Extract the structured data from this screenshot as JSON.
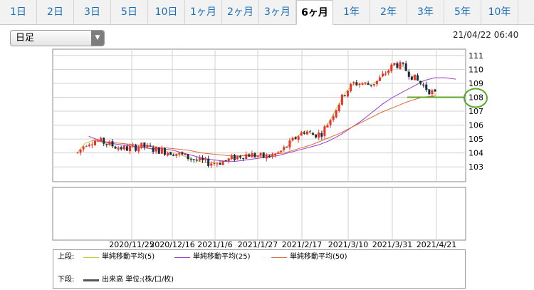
{
  "tabs": [
    {
      "label": "1日",
      "active": false
    },
    {
      "label": "2日",
      "active": false
    },
    {
      "label": "3日",
      "active": false
    },
    {
      "label": "5日",
      "active": false
    },
    {
      "label": "10日",
      "active": false
    },
    {
      "label": "1ヶ月",
      "active": false
    },
    {
      "label": "2ヶ月",
      "active": false
    },
    {
      "label": "3ヶ月",
      "active": false
    },
    {
      "label": "6ヶ月",
      "active": true
    },
    {
      "label": "1年",
      "active": false
    },
    {
      "label": "2年",
      "active": false
    },
    {
      "label": "3年",
      "active": false
    },
    {
      "label": "5年",
      "active": false
    },
    {
      "label": "10年",
      "active": false
    }
  ],
  "period_select": {
    "value": "日足"
  },
  "timestamp": "21/04/22 06:40",
  "colors": {
    "up": "#e8342a",
    "down": "#1c2a4a",
    "ma5": "#c8c83c",
    "ma25": "#9a3fd0",
    "ma50": "#e06b3a",
    "highlight": "#5aa82a",
    "tab_link": "#1a6fb8"
  },
  "legend": {
    "upper_label": "上段:",
    "lower_label": "下段:",
    "ma5": "単純移動平均(5)",
    "ma25": "単純移動平均(25)",
    "ma50": "単純移動平均(50)",
    "volume": "出来高 単位:(株/口/枚)"
  },
  "chart_data": {
    "type": "candlestick",
    "x_tick_labels": [
      "2020/11/25",
      "2020/12/16",
      "2021/1/6",
      "2021/1/27",
      "2021/2/17",
      "2021/3/10",
      "2021/3/31",
      "2021/4/21"
    ],
    "y_tick_labels": [
      103,
      104,
      105,
      106,
      107,
      108,
      109,
      110,
      111
    ],
    "ylim": [
      102.5,
      111.3
    ],
    "highlighted_level": 108,
    "grid": true,
    "series": [
      {
        "name": "単純移動平均(5)",
        "values": [
          104.0,
          104.7,
          104.9,
          104.8,
          104.6,
          104.4,
          104.3,
          104.4,
          104.5,
          104.3,
          104.2,
          104.1,
          104.0,
          103.8,
          103.6,
          103.4,
          103.3,
          103.3,
          103.4,
          103.6,
          103.8,
          103.9,
          103.8,
          103.7,
          103.8,
          104.1,
          104.6,
          105.2,
          105.6,
          105.3,
          105.4,
          106.3,
          107.4,
          108.4,
          109.0,
          109.0,
          108.9,
          109.2,
          109.8,
          110.4,
          110.2,
          109.6,
          109.1,
          108.6,
          108.2
        ]
      },
      {
        "name": "単純移動平均(25)",
        "values": [
          null,
          105.2,
          104.9,
          104.7,
          104.6,
          104.5,
          104.4,
          104.3,
          104.3,
          104.2,
          104.0,
          103.8,
          103.6,
          103.5,
          103.4,
          103.4,
          103.5,
          103.6,
          103.7,
          103.8,
          104.0,
          104.2,
          104.4,
          104.6,
          104.9,
          105.3,
          105.8,
          106.3,
          106.9,
          107.5,
          108.0,
          108.4,
          108.8,
          109.2,
          109.4,
          109.4,
          109.3
        ]
      },
      {
        "name": "単純移動平均(50)",
        "values": [
          null,
          104.9,
          104.8,
          104.7,
          104.6,
          104.5,
          104.4,
          104.3,
          104.2,
          104.0,
          103.9,
          103.8,
          103.8,
          103.8,
          103.9,
          104.0,
          104.3,
          104.6,
          105.0,
          105.4,
          105.9,
          106.4,
          106.9,
          107.3,
          107.7,
          108.0,
          108.1
        ]
      }
    ]
  }
}
